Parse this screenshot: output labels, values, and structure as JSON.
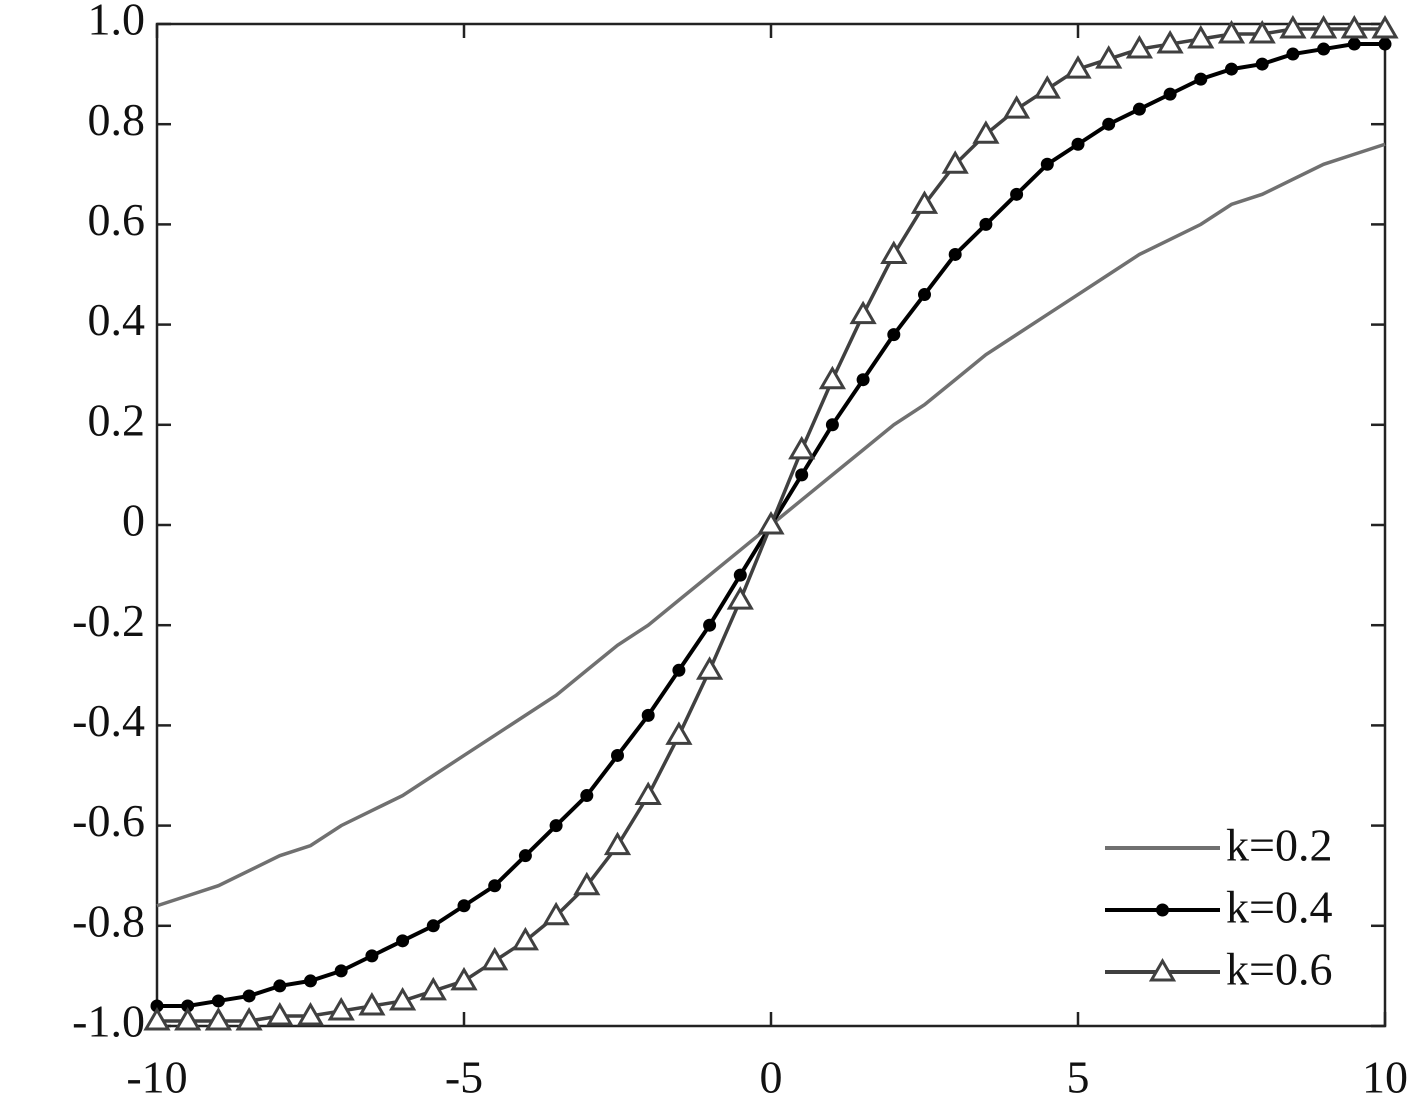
{
  "chart_data": {
    "type": "line",
    "x": [
      -10,
      -9.5,
      -9,
      -8.5,
      -8,
      -7.5,
      -7,
      -6.5,
      -6,
      -5.5,
      -5,
      -4.5,
      -4,
      -3.5,
      -3,
      -2.5,
      -2,
      -1.5,
      -1,
      -0.5,
      0,
      0.5,
      1,
      1.5,
      2,
      2.5,
      3,
      3.5,
      4,
      4.5,
      5,
      5.5,
      6,
      6.5,
      7,
      7.5,
      8,
      8.5,
      9,
      9.5,
      10
    ],
    "series": [
      {
        "name": "k=0.2",
        "color": "#707070",
        "marker": "none",
        "values": [
          -0.76,
          -0.74,
          -0.72,
          -0.69,
          -0.66,
          -0.64,
          -0.6,
          -0.57,
          -0.54,
          -0.5,
          -0.46,
          -0.42,
          -0.38,
          -0.34,
          -0.29,
          -0.24,
          -0.2,
          -0.15,
          -0.1,
          -0.05,
          0,
          0.05,
          0.1,
          0.15,
          0.2,
          0.24,
          0.29,
          0.34,
          0.38,
          0.42,
          0.46,
          0.5,
          0.54,
          0.57,
          0.6,
          0.64,
          0.66,
          0.69,
          0.72,
          0.74,
          0.76
        ]
      },
      {
        "name": "k=0.4",
        "color": "#000000",
        "marker": "dot",
        "values": [
          -0.96,
          -0.96,
          -0.95,
          -0.94,
          -0.92,
          -0.91,
          -0.89,
          -0.86,
          -0.83,
          -0.8,
          -0.76,
          -0.72,
          -0.66,
          -0.6,
          -0.54,
          -0.46,
          -0.38,
          -0.29,
          -0.2,
          -0.1,
          0,
          0.1,
          0.2,
          0.29,
          0.38,
          0.46,
          0.54,
          0.6,
          0.66,
          0.72,
          0.76,
          0.8,
          0.83,
          0.86,
          0.89,
          0.91,
          0.92,
          0.94,
          0.95,
          0.96,
          0.96
        ]
      },
      {
        "name": "k=0.6",
        "color": "#404040",
        "marker": "triangle",
        "values": [
          -0.99,
          -0.99,
          -0.99,
          -0.99,
          -0.98,
          -0.98,
          -0.97,
          -0.96,
          -0.95,
          -0.93,
          -0.91,
          -0.87,
          -0.83,
          -0.78,
          -0.72,
          -0.64,
          -0.54,
          -0.42,
          -0.29,
          -0.15,
          0,
          0.15,
          0.29,
          0.42,
          0.54,
          0.64,
          0.72,
          0.78,
          0.83,
          0.87,
          0.91,
          0.93,
          0.95,
          0.96,
          0.97,
          0.98,
          0.98,
          0.99,
          0.99,
          0.99,
          0.99
        ]
      }
    ],
    "xlim": [
      -10,
      10
    ],
    "xticks": [
      -10,
      -5,
      0,
      5,
      10
    ],
    "ylim": [
      -1,
      1
    ],
    "yticks": [
      {
        "value": -1,
        "label": "-1.0"
      },
      -0.8,
      -0.6,
      -0.4,
      -0.2,
      0,
      0.2,
      0.4,
      0.6,
      0.8,
      {
        "value": 1,
        "label": "1.0"
      }
    ],
    "grid": false,
    "legend": "lower right"
  }
}
